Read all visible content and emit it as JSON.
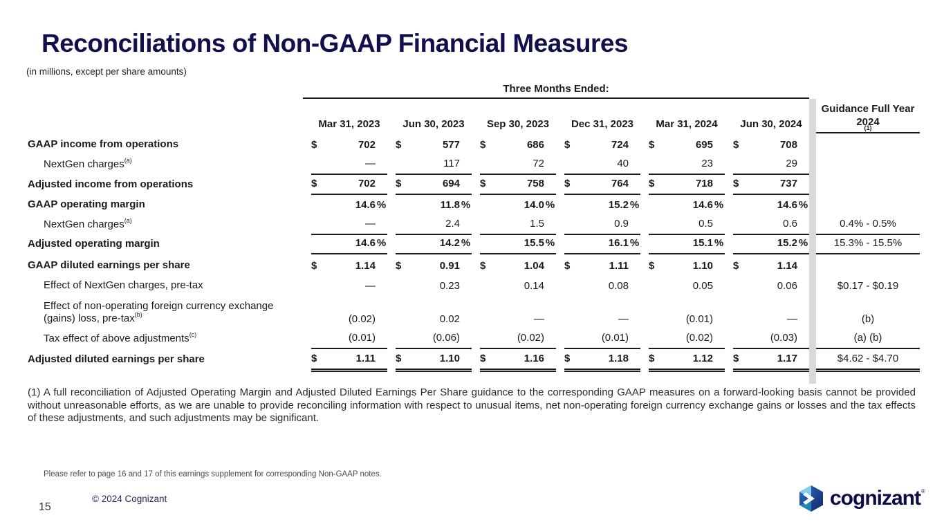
{
  "slide": {
    "title": "Reconciliations of Non-GAAP Financial Measures",
    "subtitle": "(in millions, except per share amounts)",
    "footnote": "(1) A full reconciliation of Adjusted Operating Margin and Adjusted Diluted Earnings Per Share guidance to the corresponding GAAP measures on a forward-looking basis cannot be provided without unreasonable efforts, as we are unable to provide reconciling information with respect to unusual items, net non-operating foreign currency exchange gains or losses and the tax effects of these adjustments, and such adjustments may be significant.",
    "note": "Please refer to page 16 and 17 of this earnings supplement for corresponding Non-GAAP notes.",
    "copyright": "© 2024 Cognizant",
    "page_number": "15",
    "logo_text": "cognizant",
    "logo_mark": "®"
  },
  "colors": {
    "title_navy": "#11104d",
    "logo_navy": "#0a0a47",
    "table_text": "#1a1a1a",
    "divider_band": "#d9d9d9"
  },
  "table": {
    "group_header": "Three Months Ended:",
    "columns": [
      "Mar 31, 2023",
      "Jun 30, 2023",
      "Sep 30, 2023",
      "Dec 31, 2023",
      "Mar 31, 2024",
      "Jun 30, 2024"
    ],
    "guidance_header_line1": "Guidance Full Year",
    "guidance_header_line2": "2024",
    "guidance_header_sup": "(1)",
    "rows": [
      {
        "label": "GAAP income from operations",
        "sup": "",
        "bold": true,
        "indent": false,
        "currency": "$",
        "suffix": "",
        "values": [
          "702",
          "577",
          "686",
          "724",
          "695",
          "708"
        ],
        "guidance": "",
        "rule": "none",
        "guidance_rule": "none"
      },
      {
        "label": "NextGen charges",
        "sup": "(a)",
        "bold": false,
        "indent": true,
        "currency": "",
        "suffix": "",
        "values": [
          "—",
          "117",
          "72",
          "40",
          "23",
          "29"
        ],
        "guidance": "",
        "rule": "single",
        "guidance_rule": "none"
      },
      {
        "label": "Adjusted income from operations",
        "sup": "",
        "bold": true,
        "indent": false,
        "currency": "$",
        "suffix": "",
        "values": [
          "702",
          "694",
          "758",
          "764",
          "718",
          "737"
        ],
        "guidance": "",
        "rule": "single",
        "guidance_rule": "none"
      },
      {
        "label": "GAAP operating margin",
        "sup": "",
        "bold": true,
        "indent": false,
        "currency": "",
        "suffix": "%",
        "values": [
          "14.6",
          "11.8",
          "14.0",
          "15.2",
          "14.6",
          "14.6"
        ],
        "guidance": "",
        "rule": "none",
        "guidance_rule": "none"
      },
      {
        "label": "NextGen charges",
        "sup": "(a)",
        "bold": false,
        "indent": true,
        "currency": "",
        "suffix": "",
        "values": [
          "—",
          "2.4",
          "1.5",
          "0.9",
          "0.5",
          "0.6"
        ],
        "guidance": "0.4% - 0.5%",
        "rule": "single",
        "guidance_rule": "single"
      },
      {
        "label": "Adjusted operating margin",
        "sup": "",
        "bold": true,
        "indent": false,
        "currency": "",
        "suffix": "%",
        "values": [
          "14.6",
          "14.2",
          "15.5",
          "16.1",
          "15.1",
          "15.2"
        ],
        "guidance": "15.3% - 15.5%",
        "rule": "single",
        "guidance_rule": "single"
      },
      {
        "label": "GAAP diluted earnings per share",
        "sup": "",
        "bold": true,
        "indent": false,
        "currency": "$",
        "suffix": "",
        "values": [
          "1.14",
          "0.91",
          "1.04",
          "1.11",
          "1.10",
          "1.14"
        ],
        "guidance": "",
        "rule": "none",
        "guidance_rule": "none"
      },
      {
        "label": "Effect of NextGen charges, pre-tax",
        "sup": "",
        "bold": false,
        "indent": true,
        "currency": "",
        "suffix": "",
        "values": [
          "—",
          "0.23",
          "0.14",
          "0.08",
          "0.05",
          "0.06"
        ],
        "guidance": "$0.17 - $0.19",
        "rule": "none",
        "guidance_rule": "none"
      },
      {
        "label": "Effect of non-operating foreign currency exchange (gains) loss, pre-tax",
        "sup": "(b)",
        "bold": false,
        "indent": true,
        "currency": "",
        "suffix": "",
        "values": [
          "(0.02)",
          "0.02",
          "—",
          "—",
          "(0.01)",
          "—"
        ],
        "guidance": "(b)",
        "rule": "none",
        "guidance_rule": "none"
      },
      {
        "label": "Tax effect of above adjustments",
        "sup": "(c)",
        "bold": false,
        "indent": true,
        "currency": "",
        "suffix": "",
        "values": [
          "(0.01)",
          "(0.06)",
          "(0.02)",
          "(0.01)",
          "(0.02)",
          "(0.03)"
        ],
        "guidance": "(a) (b)",
        "rule": "single",
        "guidance_rule": "single"
      },
      {
        "label": "Adjusted diluted earnings per share",
        "sup": "",
        "bold": true,
        "indent": false,
        "currency": "$",
        "suffix": "",
        "values": [
          "1.11",
          "1.10",
          "1.16",
          "1.18",
          "1.12",
          "1.17"
        ],
        "guidance": "$4.62 - $4.70",
        "rule": "double",
        "guidance_rule": "double"
      }
    ]
  }
}
